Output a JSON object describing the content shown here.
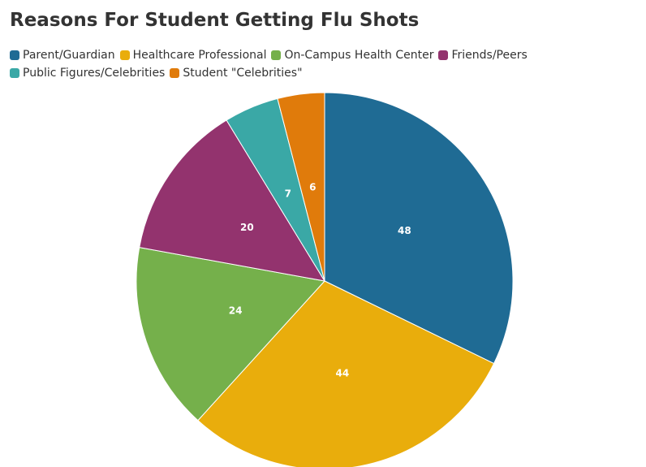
{
  "chart_data": {
    "type": "pie",
    "title": "Reasons For Student Getting Flu Shots",
    "categories": [
      "Parent/Guardian",
      "Healthcare Professional",
      "On-Campus Health Center",
      "Friends/Peers",
      "Public Figures/Celebrities",
      "Student \"Celebrities\""
    ],
    "values": [
      48,
      44,
      24,
      20,
      7,
      6
    ],
    "colors": [
      "#1f6b94",
      "#e9ad0c",
      "#75b04b",
      "#93336e",
      "#3aa8a6",
      "#e07b0b"
    ],
    "legend": "top-left"
  }
}
